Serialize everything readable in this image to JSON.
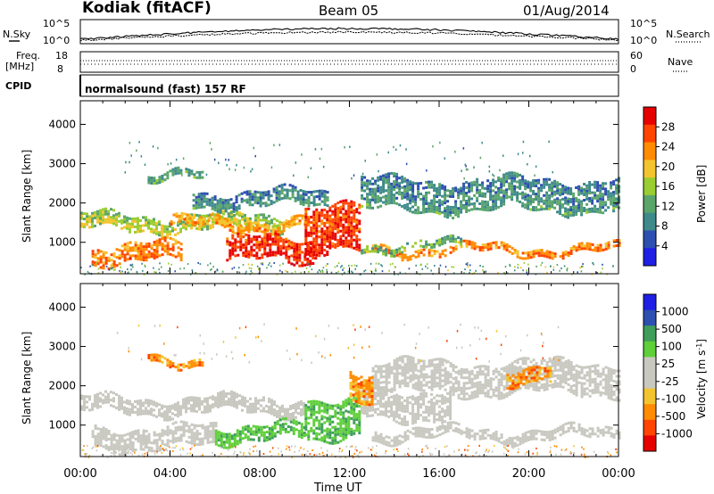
{
  "header": {
    "station": "Kodiak (fitACF)",
    "beam": "Beam 05",
    "date": "01/Aug/2014"
  },
  "noise_panel": {
    "left_label": "N.Sky",
    "right_label": "N.Search",
    "left_ticks": [
      "10^5",
      "10^0"
    ],
    "right_ticks": [
      "10^5",
      "10^0"
    ]
  },
  "freq_panel": {
    "left_label": "Freq.",
    "left_unit": "[MHz]",
    "left_ticks": [
      "18",
      "8"
    ],
    "right_label": "Nave",
    "right_ticks": [
      "60",
      "0"
    ]
  },
  "cpid": {
    "label": "CPID",
    "value": "normalsound (fast) 157 RF"
  },
  "colors": {
    "power_scale": [
      "#1f1fe6",
      "#2d4fb0",
      "#3f8a8a",
      "#5aa56a",
      "#9acd32",
      "#f4c430",
      "#ff8c00",
      "#ff4500",
      "#e60000"
    ],
    "velocity_scale": [
      "#e60000",
      "#ff4500",
      "#ff8c00",
      "#f4c430",
      "#c8c8c0",
      "#c8c8c0",
      "#5fcf3a",
      "#3f9e5a",
      "#2d4fb0",
      "#1f1fe6"
    ],
    "ground_scatter": "#c8c8c0"
  },
  "chart_data": [
    {
      "type": "heatmap",
      "title": "Power",
      "ylabel": "Slant Range [km]",
      "xlabel": "Time UT",
      "ylim": [
        200,
        4600
      ],
      "xlim": [
        0,
        24
      ],
      "x_ticks": [
        "00:00",
        "04:00",
        "08:00",
        "12:00",
        "16:00",
        "20:00",
        "00:00"
      ],
      "y_ticks": [
        1000,
        2000,
        3000,
        4000
      ],
      "colorbar": {
        "label": "Power [dB]",
        "ticks": [
          "4",
          "8",
          "12",
          "16",
          "20",
          "24",
          "28"
        ],
        "range": [
          0,
          30
        ]
      },
      "bands": [
        {
          "t0": 0.0,
          "t1": 9.0,
          "r0": 1300,
          "r1": 1700,
          "level": 14
        },
        {
          "t0": 4.0,
          "t1": 10.5,
          "r0": 1350,
          "r1": 1600,
          "level": 20
        },
        {
          "t0": 0.5,
          "t1": 4.5,
          "r0": 500,
          "r1": 950,
          "level": 22
        },
        {
          "t0": 6.5,
          "t1": 10.5,
          "r0": 500,
          "r1": 1100,
          "level": 27
        },
        {
          "t0": 10.0,
          "t1": 12.5,
          "r0": 700,
          "r1": 1900,
          "level": 26
        },
        {
          "t0": 3.0,
          "t1": 5.5,
          "r0": 2550,
          "r1": 2750,
          "level": 10
        },
        {
          "t0": 5.0,
          "t1": 11.0,
          "r0": 1900,
          "r1": 2300,
          "level": 7
        },
        {
          "t0": 12.5,
          "t1": 24.0,
          "r0": 1800,
          "r1": 2600,
          "level": 7
        },
        {
          "t0": 13.0,
          "t1": 24.0,
          "r0": 700,
          "r1": 900,
          "level": 22
        },
        {
          "t0": 12.5,
          "t1": 17.0,
          "r0": 850,
          "r1": 1000,
          "level": 11
        }
      ]
    },
    {
      "type": "heatmap",
      "title": "Velocity",
      "ylabel": "Slant Range [km]",
      "xlabel": "Time UT",
      "ylim": [
        200,
        4600
      ],
      "xlim": [
        0,
        24
      ],
      "x_ticks": [
        "00:00",
        "04:00",
        "08:00",
        "12:00",
        "16:00",
        "20:00",
        "00:00"
      ],
      "y_ticks": [
        1000,
        2000,
        3000,
        4000
      ],
      "colorbar": {
        "label": "Velocity [m s^-1]",
        "ticks": [
          "1000",
          "500",
          "100",
          "25",
          "-25",
          "-100",
          "-500",
          "-1000"
        ],
        "range": [
          -1000,
          1000
        ]
      },
      "bands": [
        {
          "t0": 0.0,
          "t1": 10.0,
          "r0": 1300,
          "r1": 1700,
          "kind": "ground"
        },
        {
          "t0": 0.5,
          "t1": 6.0,
          "r0": 450,
          "r1": 950,
          "kind": "ground"
        },
        {
          "t0": 6.0,
          "t1": 10.0,
          "r0": 600,
          "r1": 1000,
          "kind": "green"
        },
        {
          "t0": 10.0,
          "t1": 12.5,
          "r0": 700,
          "r1": 1700,
          "kind": "green"
        },
        {
          "t0": 12.5,
          "t1": 16.5,
          "r0": 1200,
          "r1": 1900,
          "kind": "ground"
        },
        {
          "t0": 13.0,
          "t1": 24.0,
          "r0": 650,
          "r1": 900,
          "kind": "ground"
        },
        {
          "t0": 13.0,
          "t1": 24.0,
          "r0": 1800,
          "r1": 2600,
          "kind": "ground"
        },
        {
          "t0": 3.0,
          "t1": 5.5,
          "r0": 2550,
          "r1": 2750,
          "kind": "orange"
        },
        {
          "t0": 12.0,
          "t1": 13.0,
          "r0": 1500,
          "r1": 2200,
          "kind": "orange"
        },
        {
          "t0": 19.0,
          "t1": 21.0,
          "r0": 2100,
          "r1": 2500,
          "kind": "orange"
        }
      ]
    }
  ],
  "time_axis": {
    "ticks": [
      "00:00",
      "04:00",
      "08:00",
      "12:00",
      "16:00",
      "20:00",
      "00:00"
    ],
    "label": "Time UT"
  }
}
